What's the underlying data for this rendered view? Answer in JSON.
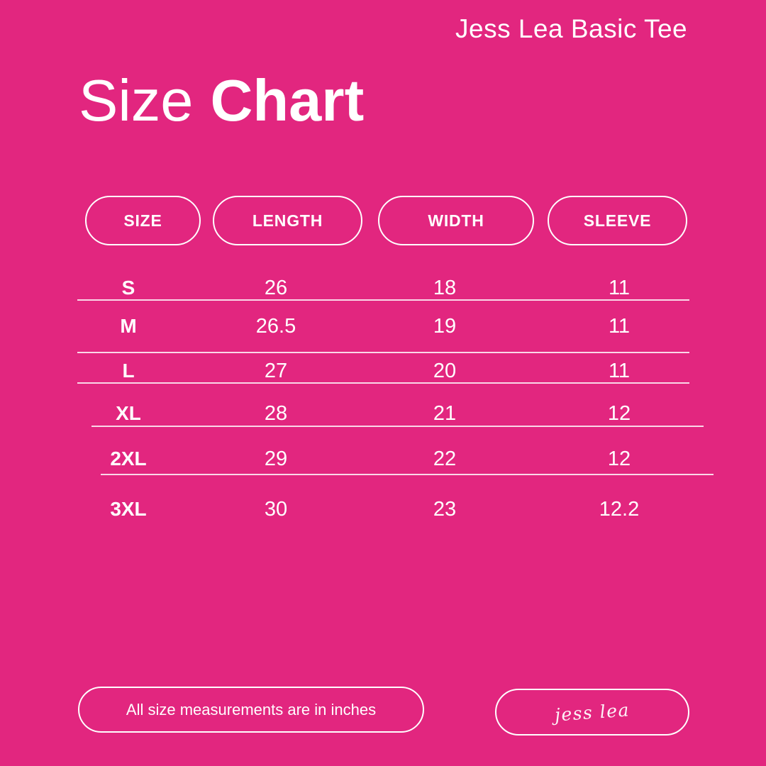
{
  "page": {
    "background_color": "#E2267F",
    "text_color": "#FFFFFF"
  },
  "header": {
    "product_name": "Jess Lea Basic Tee",
    "title_regular": "Size",
    "title_bold": "Chart"
  },
  "footer": {
    "note": "All size measurements are in inches",
    "signature": "jess lea"
  },
  "chart_data": {
    "type": "table",
    "title": "Size Chart",
    "subtitle": "Jess Lea Basic Tee",
    "columns": [
      "SIZE",
      "LENGTH",
      "WIDTH",
      "SLEEVE"
    ],
    "rows": [
      [
        "S",
        26,
        18,
        11
      ],
      [
        "M",
        26.5,
        19,
        11
      ],
      [
        "L",
        27,
        20,
        11
      ],
      [
        "XL",
        28,
        21,
        12
      ],
      [
        "2XL",
        29,
        22,
        12
      ],
      [
        "3XL",
        30,
        23,
        12.2
      ]
    ],
    "units": "inches"
  }
}
